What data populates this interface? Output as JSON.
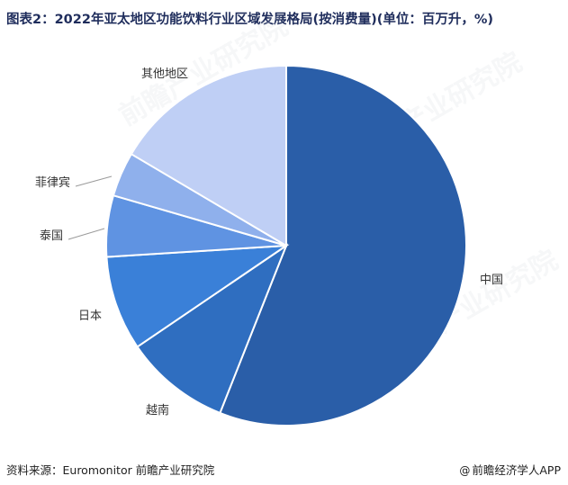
{
  "header": {
    "title": "图表2：2022年亚太地区功能饮料行业区域发展格局(按消费量)(单位：百万升，%)"
  },
  "chart_data": {
    "type": "pie",
    "title": "图表2：2022年亚太地区功能饮料行业区域发展格局(按消费量)(单位：百万升，%)",
    "categories": [
      "中国",
      "越南",
      "日本",
      "泰国",
      "菲律宾",
      "其他地区"
    ],
    "values": [
      56.0,
      9.5,
      8.5,
      5.5,
      4.0,
      16.5
    ],
    "colors": [
      "#2a5ea8",
      "#2f6ec0",
      "#3a80d8",
      "#5f93e2",
      "#8fb0ec",
      "#bfcff5"
    ],
    "legend": "none"
  },
  "footer": {
    "source": "资料来源：Euromonitor 前瞻产业研究院",
    "brand_symbol": "@",
    "brand": "前瞻经济学人APP"
  },
  "watermark": "前瞻产业研究院"
}
